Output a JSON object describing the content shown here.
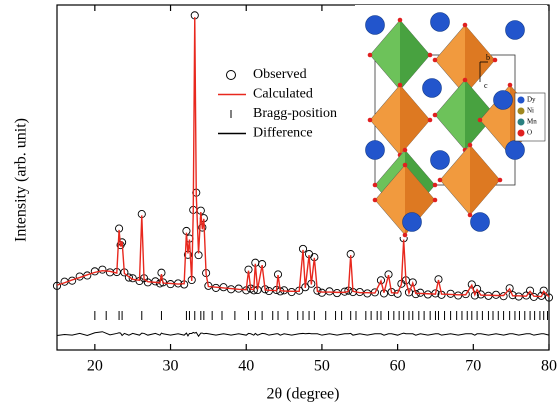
{
  "chart_data": {
    "type": "rietveld",
    "x_label": "2θ (degree)",
    "y_label": "Intensity (arb. unit)",
    "xlim": [
      15,
      80
    ],
    "xticks": [
      20,
      30,
      40,
      50,
      60,
      70,
      80
    ],
    "ylim": [
      0,
      100
    ],
    "x": [
      15,
      16,
      17,
      18,
      19,
      20,
      21,
      22,
      22.9,
      23.2,
      23.4,
      23.6,
      23.9,
      24.5,
      25,
      25.9,
      26.2,
      26.5,
      27,
      28,
      28.6,
      28.8,
      29,
      30,
      31,
      31.8,
      32.1,
      32.3,
      32.5,
      32.8,
      33,
      33.2,
      33.4,
      33.7,
      34,
      34.2,
      34.4,
      34.7,
      35,
      36,
      37,
      38,
      39,
      40,
      40.3,
      40.6,
      41,
      41.2,
      41.5,
      42.1,
      42.5,
      43,
      44,
      44.2,
      44.5,
      45,
      46,
      47,
      47.5,
      47.8,
      48.3,
      48.6,
      49,
      49.4,
      50,
      51,
      52,
      53,
      53.5,
      53.8,
      54.1,
      55,
      56,
      57,
      57.8,
      58.2,
      58.8,
      59.2,
      60,
      60.5,
      60.8,
      61.1,
      61.5,
      62,
      62.4,
      63,
      64,
      65,
      65.4,
      65.8,
      67,
      68,
      69,
      69.8,
      70.2,
      70.5,
      71,
      72,
      73,
      74,
      74.8,
      75.2,
      76,
      77,
      77.5,
      78,
      79,
      79.3,
      80
    ],
    "series": [
      {
        "name": "Observed",
        "color": "#000000",
        "values": [
          18.6,
          19.8,
          20.1,
          21.3,
          21.6,
          22.8,
          23.3,
          22.5,
          22.6,
          35.2,
          30.4,
          31.2,
          22.5,
          21.0,
          20.8,
          20.0,
          39.4,
          20.8,
          19.6,
          19.9,
          19.3,
          22.4,
          19.6,
          19.1,
          19.3,
          19.0,
          34.5,
          27.6,
          32.3,
          20.3,
          40.6,
          97,
          45.6,
          27.5,
          40.4,
          35.5,
          38.2,
          22.3,
          18.6,
          18.0,
          18.2,
          17.6,
          17.8,
          17.3,
          23.3,
          17.8,
          17.3,
          25.3,
          17.4,
          24.9,
          17.6,
          17.1,
          17.4,
          21.9,
          17.0,
          17.3,
          16.8,
          17.2,
          29.3,
          18.2,
          27.8,
          19.2,
          26.9,
          17.2,
          16.6,
          17.0,
          16.5,
          16.9,
          17.2,
          27.8,
          16.8,
          16.8,
          16.4,
          16.7,
          20.2,
          16.4,
          21.9,
          16.8,
          16.3,
          19.2,
          32.4,
          20.2,
          16.7,
          19.6,
          16.2,
          16.6,
          16.1,
          16.4,
          20.5,
          16.0,
          16.3,
          15.8,
          16.2,
          19.0,
          15.8,
          17.7,
          16.1,
          15.7,
          16.0,
          15.6,
          17.9,
          15.9,
          15.5,
          15.8,
          17.2,
          15.4,
          15.7,
          17.2,
          15.2
        ]
      },
      {
        "name": "Calculated",
        "color": "#e8281e",
        "values": [
          18.8,
          19.5,
          20.3,
          21.0,
          21.8,
          22.5,
          23.0,
          22.8,
          22.3,
          34.8,
          30,
          31.5,
          22.2,
          21.2,
          20.5,
          20.2,
          39,
          20.5,
          19.8,
          19.6,
          19.5,
          22,
          19.4,
          19.3,
          19.1,
          19.2,
          34,
          28,
          32,
          20,
          40,
          96.5,
          45,
          28,
          40,
          35,
          38,
          22,
          18.4,
          18.2,
          18.0,
          17.8,
          17.6,
          17.5,
          23,
          17.6,
          17.5,
          25,
          17.6,
          24.6,
          17.4,
          17.3,
          17.2,
          21.7,
          17.2,
          17.1,
          17.0,
          17.0,
          29,
          18,
          27.5,
          19,
          26.7,
          17,
          16.8,
          16.8,
          16.7,
          16.7,
          17,
          27.5,
          17,
          16.6,
          16.6,
          16.5,
          20,
          16.6,
          21.7,
          16.6,
          16.5,
          19,
          32,
          20,
          16.5,
          19.4,
          16.4,
          16.4,
          16.3,
          16.2,
          20.3,
          16.2,
          16.1,
          16.0,
          16.0,
          18.8,
          16,
          17.5,
          15.9,
          15.9,
          15.8,
          15.8,
          17.7,
          15.7,
          15.7,
          15.6,
          17,
          15.6,
          15.5,
          17,
          15.4
        ]
      },
      {
        "name": "Difference",
        "color": "#000000",
        "values": [
          4.2,
          4.5,
          4.3,
          4.8,
          4.2,
          5.0,
          5.3,
          4.4,
          4.8,
          5.0,
          4.9,
          4.2,
          4.8,
          4.3,
          4.8,
          4.3,
          4.9,
          4.8,
          4.3,
          4.8,
          4.3,
          4.9,
          4.7,
          4.3,
          4.7,
          4.3,
          4.9,
          4.1,
          4.8,
          4.8,
          5.1,
          4.9,
          5.1,
          4.0,
          4.9,
          4.9,
          4.7,
          4.8,
          4.7,
          4.3,
          4.7,
          4.3,
          4.7,
          4.3,
          4.8,
          4.7,
          4.3,
          4.8,
          4.3,
          4.8,
          4.7,
          4.3,
          4.7,
          4.7,
          4.3,
          4.7,
          4.3,
          4.7,
          4.8,
          4.7,
          4.8,
          4.7,
          4.7,
          4.7,
          4.3,
          4.7,
          4.3,
          4.7,
          4.7,
          4.8,
          4.3,
          4.7,
          4.3,
          4.7,
          4.7,
          4.3,
          4.7,
          4.7,
          4.3,
          4.7,
          4.9,
          4.7,
          4.7,
          4.7,
          4.3,
          4.7,
          4.3,
          4.7,
          4.7,
          4.3,
          4.7,
          4.3,
          4.7,
          4.7,
          4.3,
          4.7,
          4.7,
          4.3,
          4.7,
          4.3,
          4.7,
          4.7,
          4.3,
          4.7,
          4.7,
          4.3,
          4.7,
          4.7,
          4.3
        ]
      }
    ],
    "bragg": {
      "name": "Bragg-position",
      "color": "#000000",
      "x": [
        20,
        21.5,
        23.2,
        23.6,
        26.2,
        28.8,
        32.1,
        32.5,
        33.2,
        34.0,
        34.4,
        35.5,
        36.8,
        38.5,
        40.3,
        41.2,
        42.1,
        43.5,
        44.2,
        45.5,
        46.8,
        47.5,
        48.3,
        49.0,
        50.5,
        51.8,
        52.6,
        53.8,
        54.5,
        55.8,
        56.5,
        57.3,
        57.8,
        58.8,
        59.5,
        60.2,
        60.8,
        61.5,
        62.0,
        62.8,
        63.5,
        64.3,
        65.0,
        65.4,
        66.2,
        67.0,
        67.8,
        68.5,
        69.2,
        69.8,
        70.5,
        71.2,
        72.0,
        72.6,
        73.3,
        74.0,
        74.8,
        75.5,
        76.1,
        76.8,
        77.5,
        78.1,
        78.8,
        79.3,
        79.8
      ]
    },
    "inset": {
      "labels": [
        "Dy",
        "Ni",
        "Mn",
        "O"
      ],
      "colors": [
        "#2255cc",
        "#a08820",
        "#2a8080",
        "#e02020"
      ],
      "axis_labels": [
        "b",
        "c"
      ]
    }
  }
}
